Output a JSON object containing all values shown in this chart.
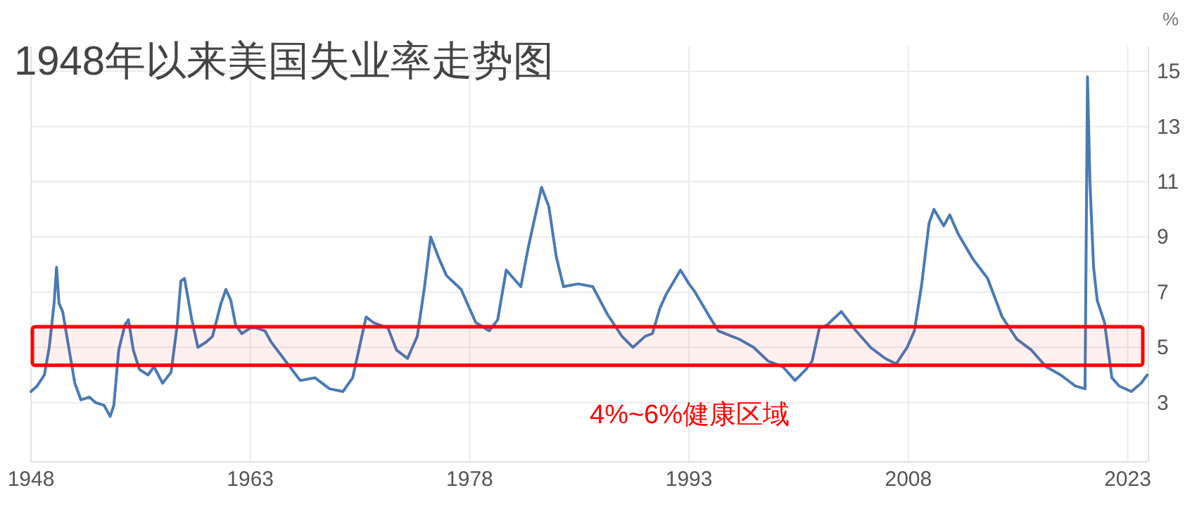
{
  "chart_data": {
    "type": "line",
    "title": "1948年以来美国失业率走势图",
    "ylabel": "%",
    "series": [
      {
        "color": "#4a7ab5",
        "x": [
          "1948-01",
          "1948-06",
          "1948-12",
          "1949-04",
          "1949-08",
          "1949-10",
          "1949-12",
          "1950-03",
          "1950-08",
          "1951-01",
          "1951-06",
          "1952-01",
          "1952-06",
          "1953-01",
          "1953-06",
          "1953-09",
          "1954-01",
          "1954-06",
          "1954-09",
          "1955-01",
          "1955-06",
          "1956-01",
          "1956-06",
          "1957-01",
          "1957-08",
          "1958-01",
          "1958-04",
          "1958-07",
          "1959-01",
          "1959-06",
          "1960-01",
          "1960-06",
          "1961-01",
          "1961-05",
          "1961-09",
          "1962-01",
          "1962-06",
          "1963-01",
          "1963-06",
          "1964-01",
          "1964-06",
          "1965-06",
          "1966-06",
          "1967-06",
          "1968-06",
          "1969-05",
          "1970-01",
          "1970-06",
          "1970-12",
          "1971-06",
          "1972-06",
          "1973-01",
          "1973-10",
          "1974-06",
          "1974-12",
          "1975-05",
          "1975-12",
          "1976-06",
          "1977-06",
          "1978-06",
          "1979-05",
          "1979-12",
          "1980-07",
          "1981-01",
          "1981-07",
          "1982-01",
          "1982-06",
          "1982-12",
          "1983-06",
          "1983-12",
          "1984-06",
          "1985-06",
          "1986-06",
          "1987-06",
          "1988-06",
          "1989-03",
          "1990-01",
          "1990-07",
          "1991-01",
          "1991-06",
          "1992-06",
          "1993-01",
          "1993-06",
          "1994-06",
          "1995-01",
          "1996-06",
          "1997-06",
          "1998-06",
          "1999-06",
          "2000-04",
          "2001-01",
          "2001-06",
          "2001-12",
          "2002-06",
          "2003-06",
          "2004-06",
          "2005-06",
          "2006-06",
          "2007-03",
          "2007-12",
          "2008-06",
          "2008-12",
          "2009-06",
          "2009-10",
          "2010-06",
          "2010-11",
          "2011-06",
          "2012-06",
          "2013-06",
          "2014-06",
          "2015-06",
          "2016-06",
          "2017-06",
          "2018-06",
          "2019-06",
          "2020-02",
          "2020-04",
          "2020-06",
          "2020-09",
          "2020-12",
          "2021-06",
          "2021-12",
          "2022-06",
          "2023-04",
          "2023-12",
          "2024-05"
        ],
        "values": [
          3.4,
          3.6,
          4.0,
          5.0,
          6.6,
          7.9,
          6.6,
          6.3,
          5.0,
          3.7,
          3.1,
          3.2,
          3.0,
          2.9,
          2.5,
          2.9,
          4.9,
          5.8,
          6.0,
          4.9,
          4.2,
          4.0,
          4.3,
          3.7,
          4.1,
          5.8,
          7.4,
          7.5,
          6.0,
          5.0,
          5.2,
          5.4,
          6.6,
          7.1,
          6.7,
          5.8,
          5.5,
          5.7,
          5.7,
          5.6,
          5.2,
          4.5,
          3.8,
          3.9,
          3.5,
          3.4,
          3.9,
          4.9,
          6.1,
          5.9,
          5.7,
          4.9,
          4.6,
          5.4,
          7.2,
          9.0,
          8.2,
          7.6,
          7.1,
          5.9,
          5.6,
          6.0,
          7.8,
          7.5,
          7.2,
          8.6,
          9.6,
          10.8,
          10.1,
          8.3,
          7.2,
          7.3,
          7.2,
          6.2,
          5.4,
          5.0,
          5.4,
          5.5,
          6.4,
          6.9,
          7.8,
          7.3,
          7.0,
          6.1,
          5.6,
          5.3,
          5.0,
          4.5,
          4.3,
          3.8,
          4.2,
          4.5,
          5.7,
          5.8,
          6.3,
          5.6,
          5.0,
          4.6,
          4.4,
          5.0,
          5.6,
          7.3,
          9.5,
          10.0,
          9.4,
          9.8,
          9.1,
          8.2,
          7.5,
          6.1,
          5.3,
          4.9,
          4.3,
          4.0,
          3.6,
          3.5,
          14.8,
          11.0,
          7.9,
          6.7,
          5.9,
          3.9,
          3.6,
          3.4,
          3.7,
          4.0
        ]
      }
    ],
    "xlim": [
      "1948-01",
      "2024-06"
    ],
    "xticks": [
      "1948",
      "1963",
      "1978",
      "1993",
      "2008",
      "2023"
    ],
    "ylim": [
      0.85,
      15.9
    ],
    "yticks": [
      3,
      5,
      7,
      9,
      11,
      13,
      15
    ],
    "grid": true,
    "bands": [
      {
        "axis": "y",
        "from": 4.35,
        "to": 5.75,
        "label": "4%~6%健康区域",
        "color": "#ff0000"
      }
    ]
  }
}
